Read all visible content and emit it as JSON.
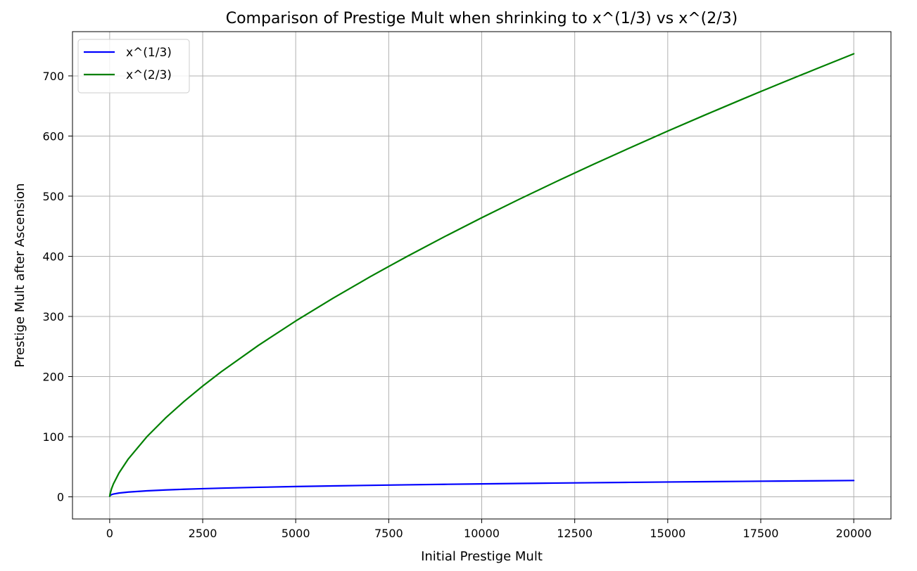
{
  "chart_data": {
    "type": "line",
    "title": "Comparison of Prestige Mult when shrinking to x^(1/3) vs x^(2/3)",
    "xlabel": "Initial Prestige Mult",
    "ylabel": "Prestige Mult after Ascension",
    "xlim": [
      -1000,
      21000
    ],
    "ylim": [
      -36.8,
      773.6
    ],
    "xticks": [
      0,
      2500,
      5000,
      7500,
      10000,
      12500,
      15000,
      17500,
      20000
    ],
    "xtick_labels": [
      "0",
      "2500",
      "5000",
      "7500",
      "10000",
      "12500",
      "15000",
      "17500",
      "20000"
    ],
    "yticks": [
      0,
      100,
      200,
      300,
      400,
      500,
      600,
      700
    ],
    "ytick_labels": [
      "0",
      "100",
      "200",
      "300",
      "400",
      "500",
      "600",
      "700"
    ],
    "grid": true,
    "legend_position": "top-left",
    "series": [
      {
        "name": "x^(1/3)",
        "color": "#0000ff",
        "x": [
          1,
          10,
          50,
          100,
          250,
          500,
          1000,
          1500,
          2000,
          2500,
          3000,
          4000,
          5000,
          6000,
          7000,
          7500,
          8000,
          9000,
          10000,
          11000,
          12000,
          12500,
          13000,
          14000,
          15000,
          16000,
          17000,
          17500,
          18000,
          19000,
          20000
        ],
        "y": [
          1.0,
          2.15,
          3.68,
          4.64,
          6.3,
          7.94,
          10.0,
          11.45,
          12.6,
          13.57,
          14.42,
          15.87,
          17.1,
          18.17,
          19.13,
          19.57,
          20.0,
          20.8,
          21.54,
          22.24,
          22.89,
          23.21,
          23.51,
          24.1,
          24.66,
          25.2,
          25.71,
          25.96,
          26.21,
          26.68,
          27.14
        ]
      },
      {
        "name": "x^(2/3)",
        "color": "#008000",
        "x": [
          1,
          10,
          50,
          100,
          250,
          500,
          1000,
          1500,
          2000,
          2500,
          3000,
          4000,
          5000,
          6000,
          7000,
          7500,
          8000,
          9000,
          10000,
          11000,
          12000,
          12500,
          13000,
          14000,
          15000,
          16000,
          17000,
          17500,
          18000,
          19000,
          20000
        ],
        "y": [
          1.0,
          4.64,
          13.57,
          21.54,
          39.69,
          63.0,
          100.0,
          131.04,
          158.74,
          184.2,
          208.01,
          251.98,
          292.4,
          330.19,
          365.93,
          383.1,
          400.0,
          432.67,
          464.16,
          494.61,
          524.15,
          538.6,
          552.87,
          580.85,
          608.22,
          634.96,
          661.13,
          674.0,
          686.78,
          711.91,
          736.81
        ]
      }
    ]
  }
}
